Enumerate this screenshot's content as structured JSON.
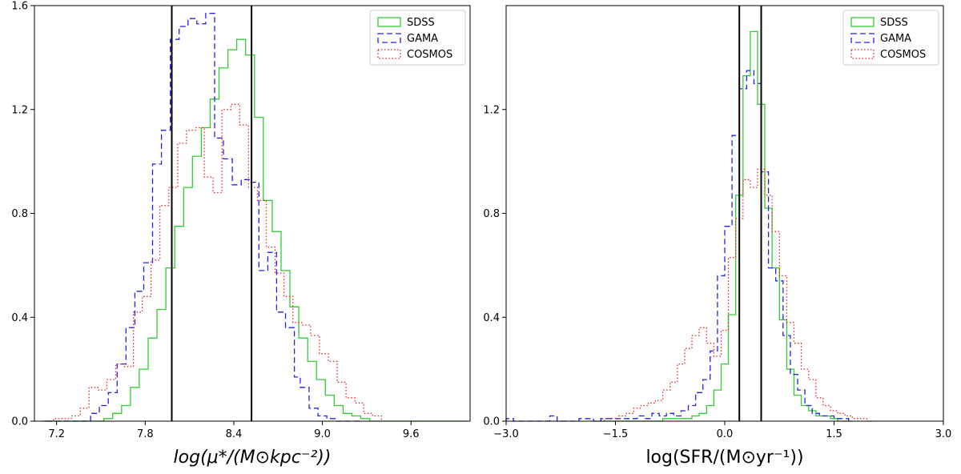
{
  "chart_data": [
    {
      "type": "histogram",
      "title": "",
      "xlabel": "log(μ*/(M⊙kpc⁻²))",
      "ylabel": "",
      "xlim": [
        7.05,
        10.0
      ],
      "ylim": [
        0,
        1.6
      ],
      "xticks": [
        7.2,
        7.8,
        8.4,
        9.0,
        9.6
      ],
      "yticks": [
        0.0,
        0.4,
        0.8,
        1.2,
        1.6
      ],
      "xtick_labels": [
        "7.2",
        "7.8",
        "8.4",
        "9.0",
        "9.6"
      ],
      "ytick_labels": [
        "0.0",
        "0.4",
        "0.8",
        "1.2",
        "1.6"
      ],
      "vlines": [
        7.98,
        8.52
      ],
      "legend_position": "top-right",
      "series": [
        {
          "name": "SDSS",
          "color": "#33cc33",
          "style": "solid",
          "bin_edges": [
            7.1,
            7.16,
            7.22,
            7.28,
            7.34,
            7.4,
            7.46,
            7.52,
            7.58,
            7.64,
            7.7,
            7.76,
            7.82,
            7.88,
            7.94,
            8.0,
            8.06,
            8.12,
            8.18,
            8.24,
            8.3,
            8.36,
            8.42,
            8.48,
            8.54,
            8.6,
            8.66,
            8.72,
            8.78,
            8.84,
            8.9,
            8.96,
            9.02,
            9.08,
            9.14,
            9.2,
            9.26,
            9.32,
            9.38,
            9.44,
            9.5,
            9.56,
            9.62,
            9.68,
            9.74,
            9.8,
            9.86,
            9.92,
            9.98
          ],
          "values": [
            0,
            0,
            0,
            0,
            0,
            0,
            0,
            0.01,
            0.03,
            0.06,
            0.13,
            0.2,
            0.32,
            0.43,
            0.59,
            0.75,
            0.9,
            1.02,
            1.13,
            1.24,
            1.36,
            1.43,
            1.47,
            1.41,
            1.17,
            0.85,
            0.73,
            0.58,
            0.44,
            0.32,
            0.23,
            0.16,
            0.1,
            0.06,
            0.03,
            0.02,
            0.01,
            0,
            0,
            0,
            0,
            0,
            0,
            0,
            0,
            0,
            0,
            0
          ]
        },
        {
          "name": "GAMA",
          "color": "#2222ee",
          "style": "dashed",
          "bin_edges": [
            7.13,
            7.19,
            7.25,
            7.31,
            7.37,
            7.43,
            7.49,
            7.55,
            7.61,
            7.67,
            7.73,
            7.79,
            7.85,
            7.91,
            7.97,
            8.03,
            8.09,
            8.15,
            8.21,
            8.27,
            8.33,
            8.39,
            8.45,
            8.51,
            8.57,
            8.63,
            8.69,
            8.75,
            8.81,
            8.85,
            8.91,
            8.97,
            9.03,
            9.09,
            9.15,
            9.21,
            9.27
          ],
          "values": [
            0,
            0,
            0,
            0,
            0,
            0.03,
            0.06,
            0.11,
            0.22,
            0.36,
            0.5,
            0.61,
            0.99,
            1.12,
            1.47,
            1.52,
            1.55,
            1.53,
            1.57,
            1.09,
            1.01,
            0.91,
            0.93,
            0.92,
            0.58,
            0.65,
            0.42,
            0.36,
            0.17,
            0.13,
            0.05,
            0.02,
            0.01,
            0,
            0,
            0
          ]
        },
        {
          "name": "COSMOS",
          "color": "#ee2222",
          "style": "dotted",
          "bin_edges": [
            7.12,
            7.18,
            7.24,
            7.3,
            7.36,
            7.42,
            7.48,
            7.54,
            7.6,
            7.66,
            7.72,
            7.78,
            7.84,
            7.9,
            7.96,
            8.02,
            8.08,
            8.14,
            8.2,
            8.26,
            8.32,
            8.38,
            8.44,
            8.5,
            8.56,
            8.62,
            8.68,
            8.74,
            8.8,
            8.86,
            8.92,
            8.98,
            9.04,
            9.1,
            9.16,
            9.22,
            9.28,
            9.34,
            9.4
          ],
          "values": [
            0,
            0.01,
            0.01,
            0.02,
            0.05,
            0.13,
            0.12,
            0.16,
            0.22,
            0.21,
            0.42,
            0.48,
            0.62,
            0.83,
            0.9,
            1.07,
            1.12,
            1.13,
            0.94,
            0.88,
            1.2,
            1.22,
            1.14,
            0.9,
            0.85,
            0.67,
            0.57,
            0.48,
            0.38,
            0.37,
            0.33,
            0.26,
            0.23,
            0.15,
            0.09,
            0.07,
            0.03,
            0.02
          ]
        }
      ]
    },
    {
      "type": "histogram",
      "title": "",
      "xlabel": "log(SFR/(M⊙yr⁻¹))",
      "ylabel": "",
      "xlim": [
        -3.0,
        3.0
      ],
      "ylim": [
        0,
        1.6
      ],
      "xticks": [
        -3.0,
        -1.5,
        0.0,
        1.5,
        3.0
      ],
      "yticks": [
        0.0,
        0.4,
        0.8,
        1.2
      ],
      "xtick_labels": [
        "−3.0",
        "−1.5",
        "0.0",
        "1.5",
        "3.0"
      ],
      "ytick_labels": [
        "0.0",
        "0.4",
        "0.8",
        "1.2"
      ],
      "vlines": [
        0.2,
        0.5
      ],
      "legend_position": "top-right",
      "series": [
        {
          "name": "SDSS",
          "color": "#33cc33",
          "style": "solid",
          "bin_edges": [
            -1.75,
            -1.65,
            -1.55,
            -1.45,
            -1.35,
            -1.25,
            -1.15,
            -1.05,
            -0.95,
            -0.85,
            -0.75,
            -0.65,
            -0.55,
            -0.45,
            -0.35,
            -0.25,
            -0.15,
            -0.05,
            0.05,
            0.15,
            0.25,
            0.35,
            0.45,
            0.55,
            0.65,
            0.75,
            0.85,
            0.95,
            1.05,
            1.15,
            1.25,
            1.35,
            1.45,
            1.55,
            1.65,
            1.75
          ],
          "values": [
            0,
            0,
            0,
            0,
            0,
            0,
            0,
            0,
            0,
            0.01,
            0.01,
            0.01,
            0.01,
            0.02,
            0.03,
            0.06,
            0.12,
            0.22,
            0.41,
            0.87,
            1.33,
            1.5,
            1.22,
            0.82,
            0.59,
            0.39,
            0.2,
            0.1,
            0.06,
            0.04,
            0.02,
            0.02,
            0.01,
            0,
            0
          ]
        },
        {
          "name": "GAMA",
          "color": "#2222ee",
          "style": "dashed",
          "bin_edges": [
            -3.0,
            -2.9,
            -2.8,
            -2.7,
            -2.6,
            -2.5,
            -2.4,
            -2.3,
            -2.2,
            -2.1,
            -2.0,
            -1.9,
            -1.8,
            -1.7,
            -1.6,
            -1.5,
            -1.4,
            -1.3,
            -1.2,
            -1.1,
            -1.0,
            -0.9,
            -0.8,
            -0.7,
            -0.6,
            -0.5,
            -0.4,
            -0.3,
            -0.2,
            -0.1,
            0.0,
            0.1,
            0.2,
            0.3,
            0.4,
            0.5,
            0.6,
            0.7,
            0.8,
            0.9,
            1.0,
            1.1,
            1.2,
            1.3,
            1.4,
            1.5,
            1.6,
            1.7
          ],
          "values": [
            0.01,
            0,
            0,
            0,
            0,
            0,
            0.02,
            0,
            0,
            0,
            0.01,
            0.01,
            0,
            0.01,
            0.01,
            0.01,
            0.01,
            0.01,
            0.02,
            0.01,
            0.03,
            0.02,
            0.03,
            0.02,
            0.04,
            0.06,
            0.11,
            0.16,
            0.27,
            0.56,
            0.75,
            1.1,
            1.28,
            1.35,
            1.3,
            0.96,
            0.59,
            0.54,
            0.33,
            0.18,
            0.12,
            0.06,
            0.03,
            0.02,
            0.02,
            0.01,
            0.01
          ]
        },
        {
          "name": "COSMOS",
          "color": "#ee2222",
          "style": "dotted",
          "bin_edges": [
            -1.65,
            -1.55,
            -1.45,
            -1.35,
            -1.25,
            -1.15,
            -1.05,
            -0.95,
            -0.85,
            -0.75,
            -0.65,
            -0.55,
            -0.45,
            -0.35,
            -0.25,
            -0.15,
            -0.05,
            0.05,
            0.15,
            0.25,
            0.35,
            0.45,
            0.55,
            0.65,
            0.75,
            0.85,
            0.95,
            1.05,
            1.15,
            1.25,
            1.35,
            1.45,
            1.55,
            1.65,
            1.75,
            1.85,
            1.95,
            2.05
          ],
          "values": [
            0.01,
            0.01,
            0.02,
            0.03,
            0.05,
            0.06,
            0.07,
            0.08,
            0.12,
            0.15,
            0.22,
            0.28,
            0.33,
            0.36,
            0.3,
            0.25,
            0.35,
            0.63,
            0.78,
            0.93,
            0.9,
            0.97,
            0.87,
            0.73,
            0.56,
            0.38,
            0.3,
            0.2,
            0.16,
            0.09,
            0.06,
            0.04,
            0.03,
            0.02,
            0.01,
            0.01,
            0
          ]
        }
      ]
    }
  ]
}
